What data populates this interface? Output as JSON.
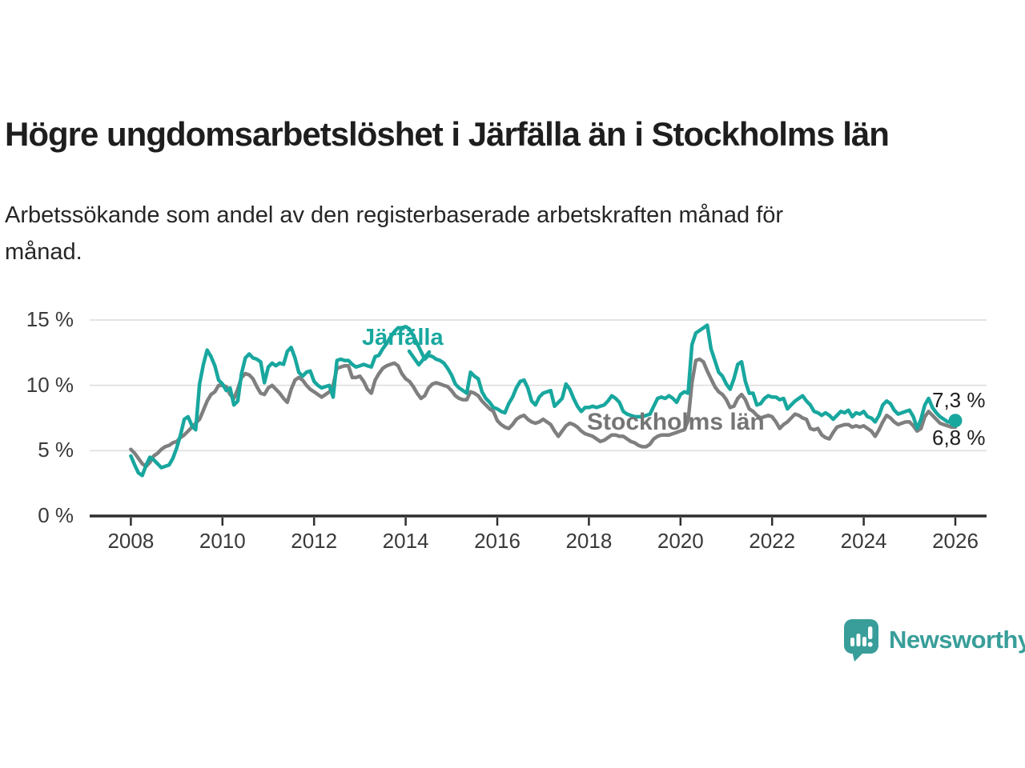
{
  "header": {
    "title": "Högre ungdomsarbetslöshet i Järfälla än i Stockholms län",
    "subtitle_line1": "Arbetssökande som andel av den registerbaserade arbetskraften månad för",
    "subtitle_line2": "månad."
  },
  "chart_data": {
    "type": "line",
    "frequency": "monthly",
    "start": "2008-01",
    "end": "2026-01",
    "grid": "horizontal",
    "unit": "%",
    "ylim": [
      0,
      15
    ],
    "y_axis": {
      "ticks": [
        {
          "value": 0,
          "label": "0 %"
        },
        {
          "value": 5,
          "label": "5 %"
        },
        {
          "value": 10,
          "label": "10 %"
        },
        {
          "value": 15,
          "label": "15 %"
        }
      ]
    },
    "x_axis": {
      "ticks": [
        "2008",
        "2010",
        "2012",
        "2014",
        "2016",
        "2018",
        "2020",
        "2022",
        "2024",
        "2026"
      ]
    },
    "series": [
      {
        "name": "Stockholms län",
        "color": "#7f7f7f",
        "end_label": "6,8 %",
        "values": [
          5.1,
          4.8,
          4.4,
          4.0,
          3.8,
          4.1,
          4.6,
          4.8,
          5.1,
          5.3,
          5.4,
          5.6,
          5.7,
          6.0,
          6.2,
          6.5,
          6.8,
          7.1,
          7.4,
          8.1,
          8.8,
          9.3,
          9.5,
          10.0,
          10.0,
          9.9,
          9.3,
          9.0,
          9.7,
          10.6,
          10.9,
          10.8,
          10.5,
          9.9,
          9.4,
          9.3,
          9.8,
          10.0,
          9.7,
          9.4,
          9.0,
          8.7,
          9.7,
          10.4,
          10.6,
          10.4,
          10.0,
          9.7,
          9.5,
          9.3,
          9.1,
          9.3,
          9.5,
          10.0,
          11.3,
          11.4,
          11.5,
          11.5,
          10.6,
          10.6,
          10.7,
          10.3,
          9.7,
          9.4,
          10.4,
          10.9,
          11.3,
          11.5,
          11.6,
          11.7,
          11.5,
          10.9,
          10.5,
          10.3,
          9.9,
          9.4,
          9.0,
          9.2,
          9.8,
          10.1,
          10.2,
          10.1,
          10.0,
          9.9,
          9.6,
          9.2,
          9.0,
          8.9,
          8.9,
          9.5,
          9.4,
          9.2,
          8.8,
          8.5,
          8.2,
          8.0,
          7.3,
          7.0,
          6.8,
          6.7,
          7.0,
          7.4,
          7.6,
          7.7,
          7.4,
          7.2,
          7.1,
          7.2,
          7.4,
          7.2,
          7.0,
          6.5,
          6.1,
          6.5,
          6.9,
          7.1,
          7.0,
          6.8,
          6.5,
          6.3,
          6.2,
          6.1,
          5.9,
          5.7,
          5.8,
          6.0,
          6.2,
          6.2,
          6.1,
          6.1,
          5.9,
          5.7,
          5.6,
          5.4,
          5.3,
          5.3,
          5.5,
          5.9,
          6.1,
          6.2,
          6.2,
          6.2,
          6.3,
          6.4,
          6.5,
          6.6,
          7.3,
          10.2,
          11.9,
          12.0,
          11.8,
          11.1,
          10.5,
          9.9,
          9.5,
          9.3,
          8.9,
          8.3,
          8.4,
          9.0,
          9.3,
          8.9,
          8.2,
          8.0,
          7.7,
          7.5,
          7.6,
          7.7,
          7.6,
          7.2,
          6.7,
          7.0,
          7.2,
          7.5,
          7.8,
          7.7,
          7.5,
          7.4,
          6.7,
          6.6,
          6.7,
          6.2,
          6.0,
          5.9,
          6.4,
          6.8,
          6.9,
          7.0,
          7.0,
          6.8,
          6.9,
          6.8,
          6.9,
          6.7,
          6.5,
          6.1,
          6.6,
          7.2,
          7.7,
          7.5,
          7.2,
          7.0,
          7.1,
          7.2,
          7.2,
          6.9,
          6.5,
          6.7,
          7.6,
          8.0,
          7.7,
          7.4,
          7.1,
          7.0,
          6.9,
          6.8,
          6.8
        ]
      },
      {
        "name": "Järfälla",
        "color": "#18a79e",
        "end_label": "7,3 %",
        "end_dot": true,
        "values": [
          4.6,
          3.9,
          3.3,
          3.1,
          3.9,
          4.5,
          4.3,
          4.0,
          3.7,
          3.8,
          3.9,
          4.4,
          5.2,
          6.2,
          7.4,
          7.6,
          6.9,
          6.6,
          10.1,
          11.6,
          12.7,
          12.2,
          11.5,
          10.4,
          10.1,
          9.6,
          9.8,
          8.5,
          8.8,
          10.9,
          12.1,
          12.4,
          12.1,
          12.0,
          11.8,
          10.2,
          11.4,
          11.7,
          11.5,
          11.7,
          11.6,
          12.6,
          12.9,
          12.1,
          11.0,
          10.7,
          11.0,
          11.1,
          10.3,
          10.0,
          9.8,
          9.9,
          10.0,
          9.1,
          11.9,
          12.0,
          11.9,
          11.9,
          11.6,
          11.4,
          11.5,
          11.6,
          11.5,
          11.4,
          12.2,
          12.3,
          12.8,
          13.2,
          13.7,
          14.1,
          14.4,
          14.4,
          14.5,
          14.3,
          13.8,
          13.2,
          12.6,
          12.0,
          12.3,
          12.2,
          12.0,
          11.9,
          11.7,
          11.3,
          10.8,
          10.1,
          9.8,
          9.6,
          9.4,
          11.0,
          10.7,
          10.5,
          9.5,
          9.0,
          8.7,
          8.3,
          8.2,
          8.0,
          7.9,
          8.6,
          9.1,
          9.8,
          10.3,
          10.4,
          9.8,
          8.8,
          8.5,
          9.1,
          9.4,
          9.5,
          9.6,
          8.4,
          8.7,
          9.0,
          10.1,
          9.7,
          9.0,
          8.4,
          8.0,
          8.3,
          8.3,
          8.4,
          8.3,
          8.4,
          8.5,
          8.8,
          9.2,
          9.0,
          8.7,
          8.0,
          7.8,
          7.7,
          7.6,
          7.6,
          7.6,
          7.7,
          7.8,
          8.4,
          9.0,
          9.1,
          9.0,
          9.2,
          9.0,
          8.7,
          9.3,
          9.5,
          9.4,
          13.1,
          14.0,
          14.2,
          14.4,
          14.6,
          12.8,
          11.9,
          11.0,
          10.7,
          10.1,
          9.7,
          10.5,
          11.6,
          11.8,
          10.3,
          9.4,
          9.4,
          8.5,
          8.6,
          9.0,
          9.2,
          9.1,
          9.1,
          8.9,
          9.0,
          8.2,
          8.5,
          8.8,
          9.0,
          9.2,
          8.8,
          8.5,
          8.0,
          7.9,
          7.7,
          7.9,
          7.7,
          7.4,
          7.7,
          8.0,
          7.9,
          8.1,
          7.6,
          7.9,
          7.8,
          8.0,
          7.6,
          7.5,
          7.2,
          7.7,
          8.5,
          8.8,
          8.6,
          8.1,
          7.8,
          7.9,
          8.0,
          8.1,
          7.6,
          6.7,
          7.4,
          8.5,
          9.0,
          8.3,
          7.9,
          7.6,
          7.4,
          7.2,
          7.2,
          7.3
        ]
      }
    ]
  },
  "branding": {
    "name": "Newsworthy"
  },
  "colors": {
    "jarfalla": "#18a79e",
    "stockholm_line": "#7f7f7f",
    "grid": "#dcdcdc",
    "axis": "#2e2e2e",
    "logo": "#399e99"
  }
}
